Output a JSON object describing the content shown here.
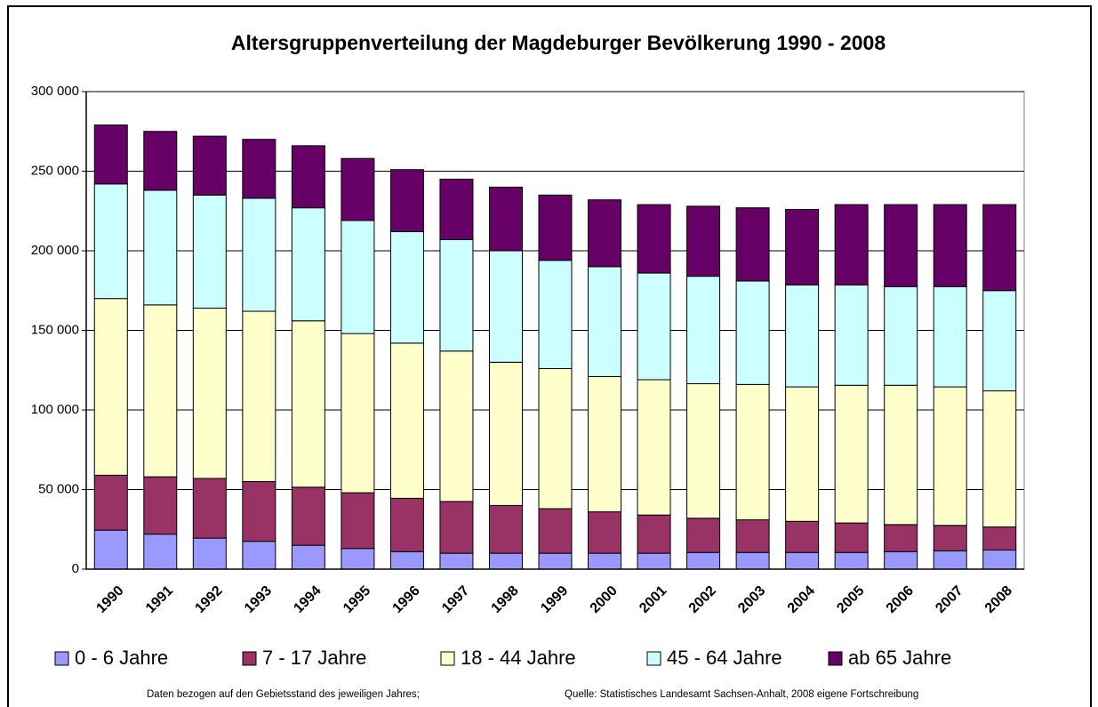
{
  "chart_data": {
    "type": "stacked_bar",
    "title": "Altersgruppenverteilung der Magdeburger Bevölkerung 1990 - 2008",
    "categories": [
      "1990",
      "1991",
      "1992",
      "1993",
      "1994",
      "1995",
      "1996",
      "1997",
      "1998",
      "1999",
      "2000",
      "2001",
      "2002",
      "2003",
      "2004",
      "2005",
      "2006",
      "2007",
      "2008"
    ],
    "series": [
      {
        "name": "0 - 6 Jahre",
        "color": "#9999ff",
        "values": [
          24500,
          22000,
          19500,
          17500,
          15000,
          13000,
          11000,
          10000,
          10000,
          10000,
          10000,
          10000,
          10500,
          10500,
          10500,
          10500,
          11000,
          11500,
          12000
        ]
      },
      {
        "name": "7 - 17 Jahre",
        "color": "#993366",
        "values": [
          34500,
          36000,
          37500,
          37500,
          36500,
          35000,
          33500,
          32500,
          30000,
          28000,
          26000,
          24000,
          21500,
          20500,
          19500,
          18500,
          17000,
          16000,
          14500
        ]
      },
      {
        "name": "18 - 44 Jahre",
        "color": "#ffffcc",
        "values": [
          111000,
          108000,
          107000,
          107000,
          104500,
          100000,
          97500,
          94500,
          90000,
          88000,
          85000,
          85000,
          84500,
          85000,
          84500,
          86500,
          87500,
          87000,
          85500
        ]
      },
      {
        "name": "45 - 64 Jahre",
        "color": "#ccffff",
        "values": [
          72000,
          72000,
          71000,
          71000,
          71000,
          71000,
          70000,
          70000,
          70000,
          68000,
          69000,
          67000,
          67500,
          65000,
          64000,
          63000,
          62000,
          63000,
          63000
        ]
      },
      {
        "name": "ab 65 Jahre",
        "color": "#660066",
        "values": [
          37000,
          37000,
          37000,
          37000,
          39000,
          39000,
          39000,
          38000,
          40000,
          41000,
          42000,
          43000,
          44000,
          46000,
          47500,
          50500,
          51500,
          51500,
          54000
        ]
      }
    ],
    "ylim": [
      0,
      300000
    ],
    "yticks": [
      0,
      {
        "value": 50000,
        "label": "50 000"
      },
      {
        "value": 100000,
        "label": "100 000"
      },
      {
        "value": 150000,
        "label": "150 000"
      },
      {
        "value": 200000,
        "label": "200 000"
      },
      {
        "value": 250000,
        "label": "250 000"
      },
      {
        "value": 300000,
        "label": "300 000"
      }
    ],
    "grid": true,
    "notes": [
      "Daten bezogen auf den Gebietsstand des jeweiligen Jahres;",
      "Quelle: Statistisches Landesamt Sachsen-Anhalt, 2008 eigene Fortschreibung"
    ]
  }
}
